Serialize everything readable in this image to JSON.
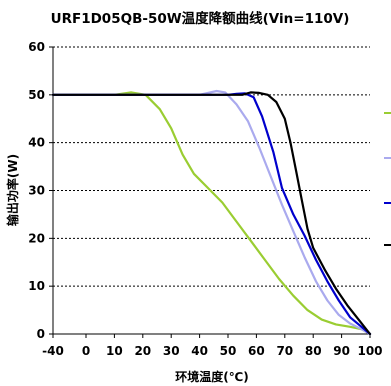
{
  "chart_data": {
    "type": "line",
    "title": "URF1D05QB-50W温度降额曲线(Vin=110V)",
    "xlabel": "环境温度(℃)",
    "ylabel": "输出功率(W)",
    "xlim": [
      -40,
      100
    ],
    "ylim": [
      0,
      60
    ],
    "xticks": [
      -40,
      0,
      10,
      20,
      30,
      40,
      50,
      60,
      70,
      80,
      90,
      100
    ],
    "yticks": [
      0,
      10,
      20,
      30,
      40,
      50,
      60
    ],
    "grid": "horizontal dashed",
    "legend": "right, labels not legible",
    "series": [
      {
        "color": "#9acd32",
        "points": [
          [
            -40,
            50
          ],
          [
            10,
            50
          ],
          [
            16,
            50.5
          ],
          [
            21,
            50
          ],
          [
            26,
            47
          ],
          [
            30,
            43
          ],
          [
            34,
            37.5
          ],
          [
            38,
            33.5
          ],
          [
            43,
            30.5
          ],
          [
            48,
            27.5
          ],
          [
            53,
            23.5
          ],
          [
            58,
            19.5
          ],
          [
            63,
            15.5
          ],
          [
            68,
            11.5
          ],
          [
            73,
            8
          ],
          [
            78,
            5
          ],
          [
            83,
            3
          ],
          [
            88,
            2
          ],
          [
            93,
            1.5
          ],
          [
            97,
            1
          ],
          [
            100,
            0
          ]
        ]
      },
      {
        "color": "#aaaaee",
        "points": [
          [
            -40,
            50
          ],
          [
            40,
            50
          ],
          [
            46,
            50.8
          ],
          [
            49,
            50.5
          ],
          [
            53,
            48
          ],
          [
            57,
            44.5
          ],
          [
            61,
            39
          ],
          [
            65,
            33
          ],
          [
            69,
            27
          ],
          [
            73,
            21.5
          ],
          [
            77,
            16
          ],
          [
            81,
            11
          ],
          [
            85,
            7
          ],
          [
            89,
            4
          ],
          [
            93,
            2.2
          ],
          [
            97,
            1
          ],
          [
            100,
            0
          ]
        ]
      },
      {
        "color": "#0000cc",
        "points": [
          [
            -40,
            50
          ],
          [
            50,
            50
          ],
          [
            53,
            50.2
          ],
          [
            56,
            50.3
          ],
          [
            59,
            49.5
          ],
          [
            62,
            45.5
          ],
          [
            66,
            38
          ],
          [
            69,
            30.5
          ],
          [
            73,
            25
          ],
          [
            77,
            20.5
          ],
          [
            81,
            15.5
          ],
          [
            85,
            11
          ],
          [
            89,
            7
          ],
          [
            93,
            3.5
          ],
          [
            97,
            1.5
          ],
          [
            100,
            0
          ]
        ]
      },
      {
        "color": "#000000",
        "points": [
          [
            -40,
            50
          ],
          [
            55,
            50
          ],
          [
            58,
            50.5
          ],
          [
            61,
            50.4
          ],
          [
            64,
            50
          ],
          [
            67,
            48.5
          ],
          [
            70,
            45
          ],
          [
            72,
            40
          ],
          [
            74,
            34
          ],
          [
            76,
            28
          ],
          [
            78,
            22
          ],
          [
            80,
            18
          ],
          [
            84,
            13.5
          ],
          [
            88,
            9.5
          ],
          [
            92,
            6
          ],
          [
            96,
            3
          ],
          [
            100,
            0
          ]
        ]
      }
    ]
  }
}
